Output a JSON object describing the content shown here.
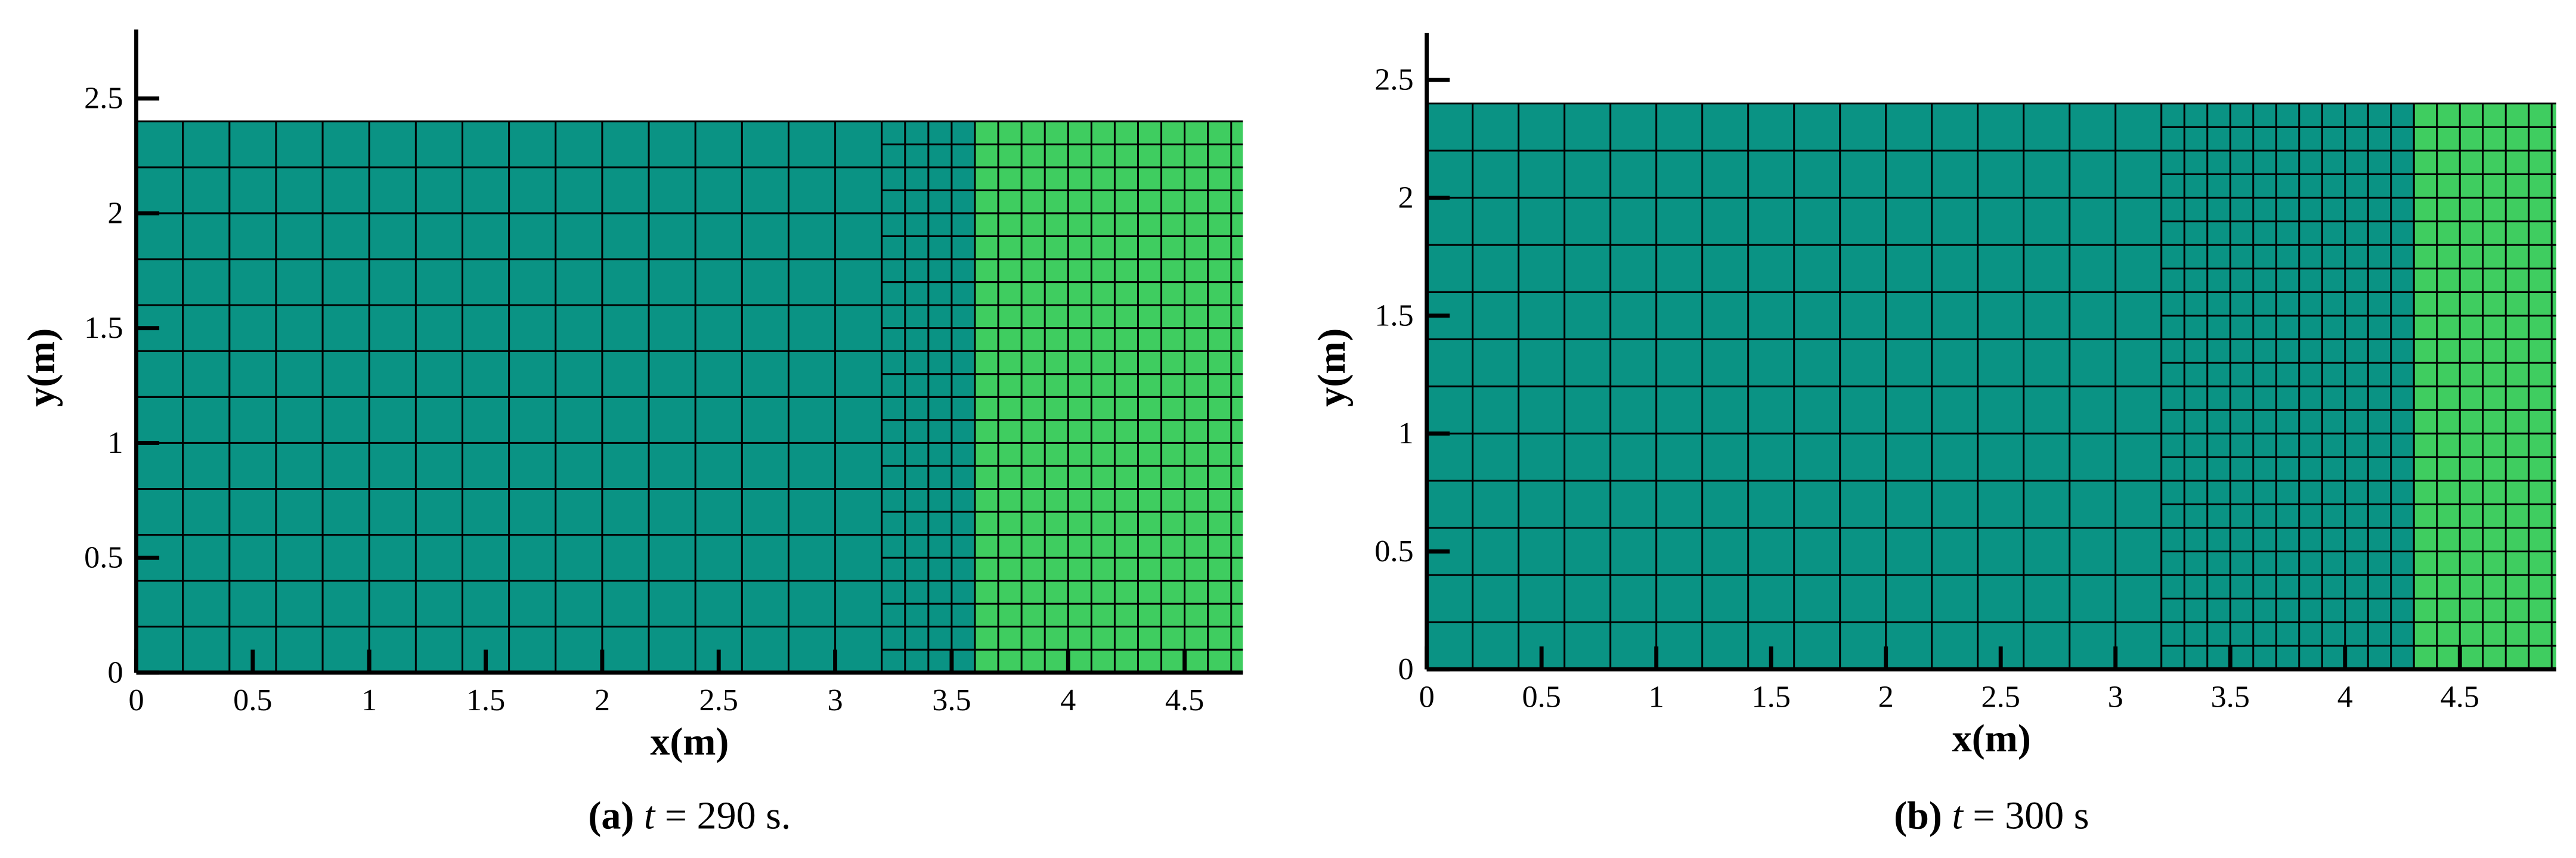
{
  "chart_data": [
    {
      "type": "mesh",
      "xlabel": "x(m)",
      "ylabel": "y(m)",
      "caption": {
        "label": "(a)",
        "variable": "t",
        "text": "= 290 s."
      },
      "xlim": [
        0,
        4.75
      ],
      "ylim": [
        0,
        2.8
      ],
      "xticks": [
        0,
        0.5,
        1,
        1.5,
        2,
        2.5,
        3,
        3.5,
        4,
        4.5
      ],
      "yticks": [
        0,
        0.5,
        1,
        1.5,
        2,
        2.5
      ],
      "domain_y": [
        0,
        2.4
      ],
      "regions": [
        {
          "x": [
            0,
            3.2
          ],
          "cell": 0.2,
          "color": "#0a9384"
        },
        {
          "x": [
            3.2,
            3.6
          ],
          "cell": 0.1,
          "color": "#0a9384"
        },
        {
          "x": [
            3.6,
            4.75
          ],
          "cell": 0.1,
          "color": "#3fcd60"
        }
      ]
    },
    {
      "type": "mesh",
      "xlabel": "x(m)",
      "ylabel": "y(m)",
      "caption": {
        "label": "(b)",
        "variable": "t",
        "text": "= 300 s"
      },
      "xlim": [
        0,
        4.92
      ],
      "ylim": [
        0,
        2.7
      ],
      "xticks": [
        0,
        0.5,
        1,
        1.5,
        2,
        2.5,
        3,
        3.5,
        4,
        4.5
      ],
      "yticks": [
        0,
        0.5,
        1,
        1.5,
        2,
        2.5
      ],
      "domain_y": [
        0,
        2.4
      ],
      "regions": [
        {
          "x": [
            0,
            3.2
          ],
          "cell": 0.2,
          "color": "#0a9384"
        },
        {
          "x": [
            3.2,
            4.3
          ],
          "cell": 0.1,
          "color": "#0a9384"
        },
        {
          "x": [
            4.3,
            4.92
          ],
          "cell": 0.1,
          "color": "#3fcd60"
        }
      ]
    }
  ]
}
